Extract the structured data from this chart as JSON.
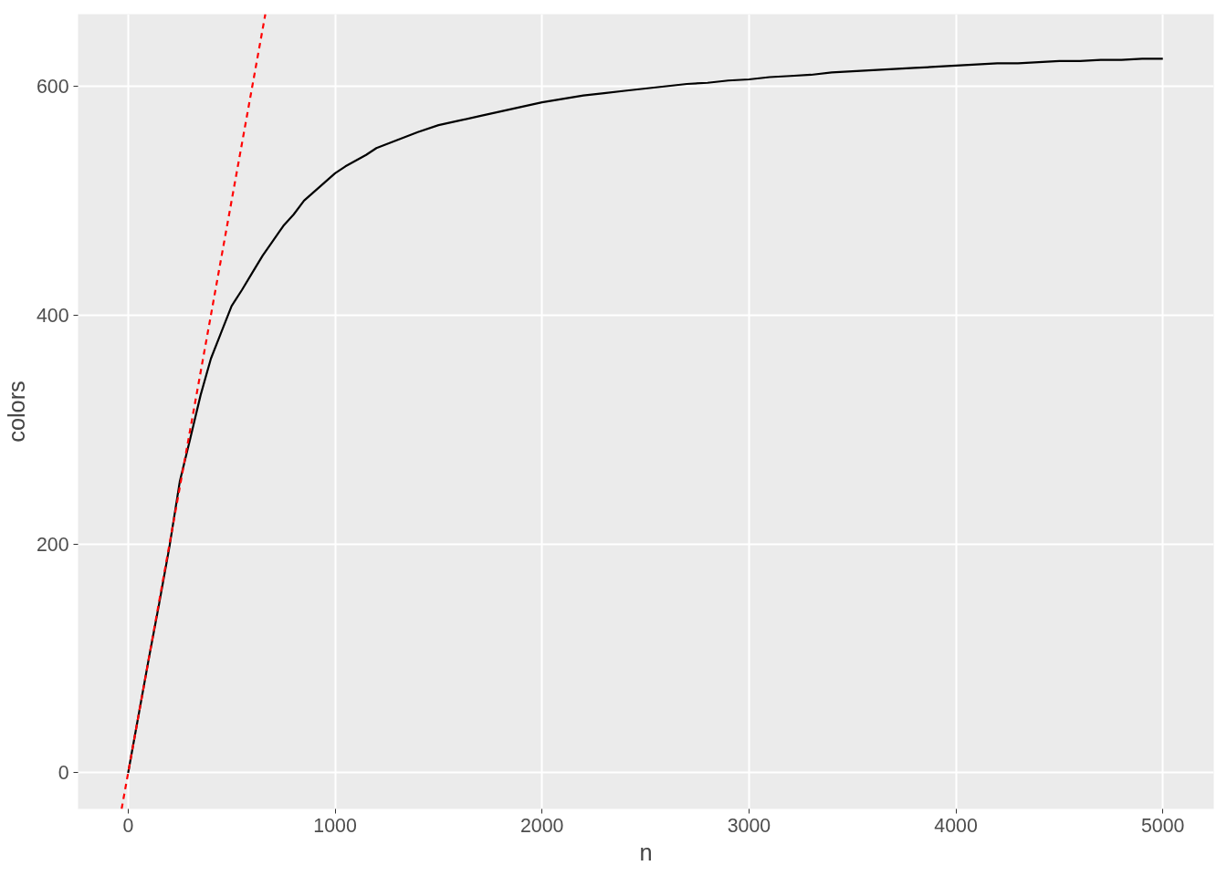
{
  "chart_data": {
    "type": "line",
    "xlabel": "n",
    "ylabel": "colors",
    "xlim": [
      -242,
      5246
    ],
    "ylim": [
      -31.5,
      663
    ],
    "xticks": [
      0,
      1000,
      2000,
      3000,
      4000,
      5000
    ],
    "yticks": [
      0,
      200,
      400,
      600
    ],
    "grid": true,
    "marker": "none",
    "series": [
      {
        "color": "#000000",
        "line_style": "solid",
        "x": [
          0,
          50,
          100,
          150,
          200,
          250,
          300,
          350,
          400,
          450,
          500,
          550,
          600,
          650,
          700,
          750,
          800,
          850,
          900,
          950,
          1000,
          1050,
          1100,
          1150,
          1200,
          1300,
          1400,
          1500,
          1600,
          1700,
          1800,
          1900,
          2000,
          2100,
          2200,
          2300,
          2400,
          2500,
          2600,
          2700,
          2800,
          2900,
          3000,
          3100,
          3200,
          3300,
          3400,
          3500,
          3600,
          3700,
          3800,
          3900,
          4000,
          4100,
          4200,
          4300,
          4400,
          4500,
          4600,
          4700,
          4800,
          4900,
          5000
        ],
        "values": [
          0,
          50,
          100,
          148,
          198,
          255,
          292,
          330,
          362,
          385,
          408,
          422,
          437,
          452,
          465,
          478,
          488,
          500,
          508,
          516,
          524,
          530,
          535,
          540,
          546,
          553,
          560,
          566,
          570,
          574,
          578,
          582,
          586,
          589,
          592,
          594,
          596,
          598,
          600,
          602,
          603,
          605,
          606,
          608,
          609,
          610,
          612,
          613,
          614,
          615,
          616,
          617,
          618,
          619,
          620,
          620,
          621,
          622,
          622,
          623,
          623,
          624,
          624
        ]
      },
      {
        "color": "#ff0000",
        "line_style": "dashed",
        "x": [
          -31.5,
          663
        ],
        "values": [
          -31.5,
          663
        ]
      }
    ]
  }
}
